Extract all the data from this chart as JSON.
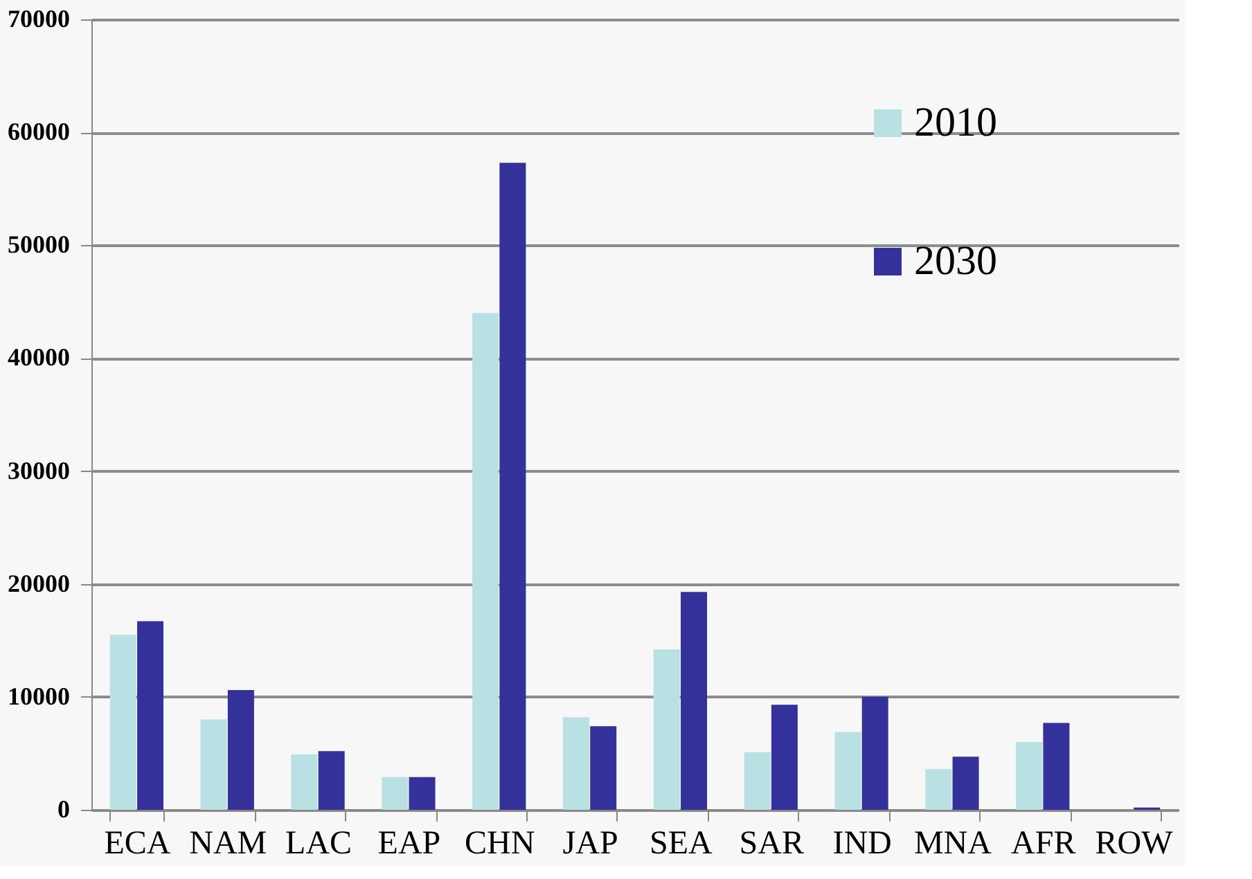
{
  "chart_data": {
    "type": "bar",
    "categories": [
      "ECA",
      "NAM",
      "LAC",
      "EAP",
      "CHN",
      "JAP",
      "SEA",
      "SAR",
      "IND",
      "MNA",
      "AFR",
      "ROW"
    ],
    "series": [
      {
        "name": "2010",
        "color": "#b9e0e3",
        "values": [
          15500,
          8000,
          4900,
          2900,
          44000,
          8200,
          14200,
          5100,
          6900,
          3600,
          6000,
          null
        ]
      },
      {
        "name": "2030",
        "color": "#34329a",
        "values": [
          16700,
          10600,
          5200,
          2900,
          57300,
          7400,
          19300,
          9300,
          10000,
          4700,
          7700,
          200
        ]
      }
    ],
    "ylim": [
      0,
      70000
    ],
    "yticks": [
      0,
      10000,
      20000,
      30000,
      40000,
      50000,
      60000,
      70000
    ],
    "grid": "y",
    "legend": "top right"
  }
}
